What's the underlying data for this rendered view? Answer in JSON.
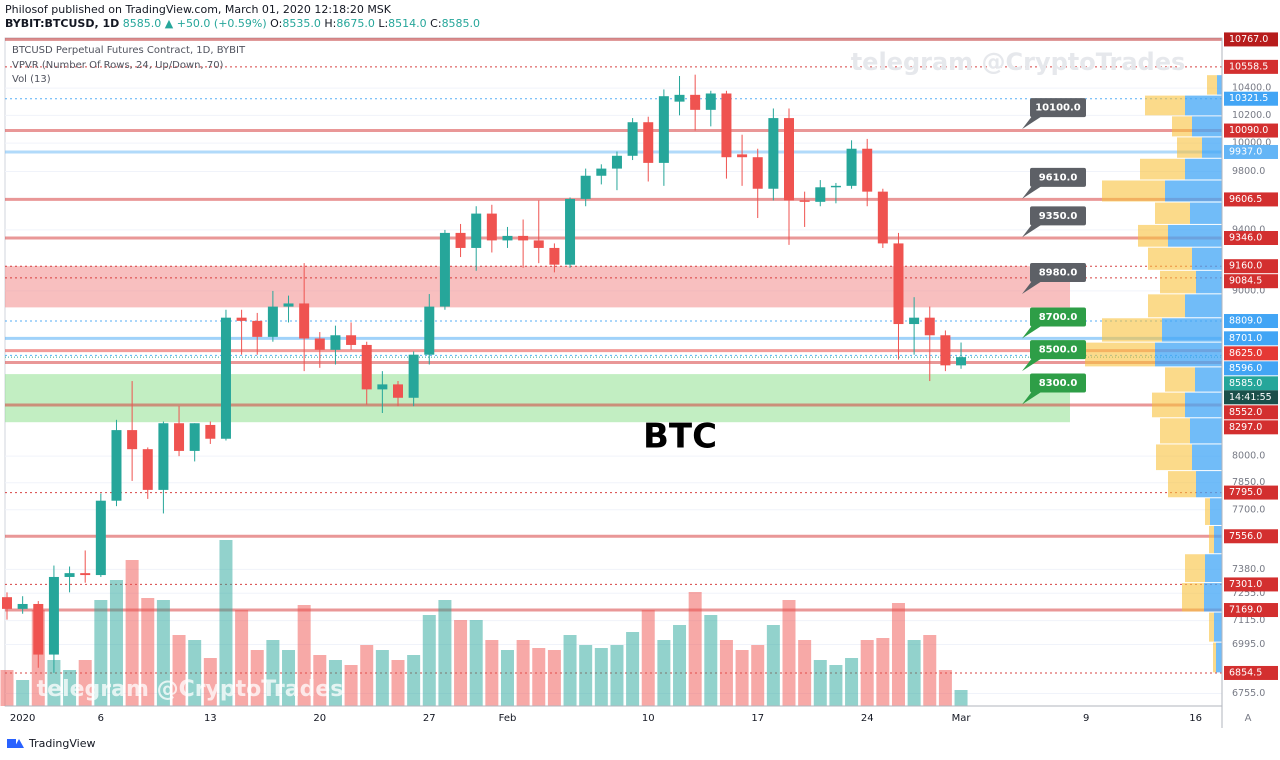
{
  "header": {
    "publisher": "Philosof published on TradingView.com, March 01, 2020 12:18:20 MSK",
    "symbol": "BYBIT:BTCUSD, 1D",
    "last": "8585.0",
    "change": "▲ +50.0 (+0.59%)",
    "o_label": "O:",
    "o": "8535.0",
    "h_label": "H:",
    "h": "8675.0",
    "l_label": "L:",
    "l": "8514.0",
    "c_label": "C:",
    "c": "8585.0"
  },
  "footer": {
    "brand": "TradingView",
    "axis_mode": "A"
  },
  "chart_data": {
    "type": "candlestick",
    "title": "BTCUSD Perpetual Futures Contract, 1D, BYBIT",
    "indicators": [
      "VPVR (Number Of Rows, 24, Up/Down, 70)",
      "Vol (13)"
    ],
    "annotation": "BTC",
    "watermark": "telegram @CryptoTrades",
    "categories": [
      null,
      "2020",
      null,
      null,
      null,
      null,
      "6",
      null,
      null,
      null,
      null,
      null,
      null,
      "13",
      null,
      null,
      null,
      null,
      null,
      null,
      "20",
      null,
      null,
      null,
      null,
      null,
      null,
      "27",
      null,
      null,
      null,
      null,
      "Feb",
      null,
      null,
      null,
      null,
      null,
      null,
      null,
      null,
      "10",
      null,
      null,
      null,
      null,
      null,
      null,
      "17",
      null,
      null,
      null,
      null,
      null,
      null,
      "24",
      null,
      null,
      null,
      null,
      null,
      "Mar",
      null,
      null,
      null,
      null,
      null,
      null,
      null,
      "9",
      null,
      null,
      null,
      null,
      null,
      null,
      "16"
    ],
    "open": [
      7235,
      7175,
      7200,
      6945,
      7340,
      7360,
      7350,
      7750,
      8150,
      8040,
      7810,
      8190,
      8030,
      8180,
      8100,
      8830,
      8810,
      8710,
      8900,
      8920,
      8700,
      8630,
      8720,
      8660,
      8390,
      8420,
      8340,
      8600,
      8900,
      9380,
      9280,
      9510,
      9330,
      9360,
      9330,
      9280,
      9170,
      9610,
      9770,
      9820,
      9910,
      10150,
      9860,
      10300,
      10350,
      10240,
      10360,
      9920,
      9900,
      9680,
      10180,
      9600,
      9590,
      9690,
      9700,
      9960,
      9660,
      9310,
      8790,
      8830,
      8720,
      8535,
      null,
      null,
      null,
      null,
      null,
      null,
      null,
      null,
      null,
      null,
      null,
      null,
      null,
      null,
      null
    ],
    "high": [
      7260,
      7240,
      7215,
      7400,
      7395,
      7480,
      7790,
      8210,
      8440,
      8050,
      8200,
      8290,
      8190,
      8200,
      8880,
      8880,
      8860,
      9000,
      8970,
      9180,
      8740,
      8780,
      8800,
      8680,
      8500,
      8440,
      8620,
      8980,
      9400,
      9440,
      9560,
      9570,
      9420,
      9470,
      9600,
      9310,
      9620,
      9820,
      9850,
      9940,
      10180,
      10190,
      10390,
      10490,
      10500,
      10380,
      10380,
      10060,
      9960,
      10250,
      10250,
      9660,
      9740,
      9720,
      10020,
      10030,
      9680,
      9380,
      8960,
      8900,
      8750,
      8675,
      null,
      null,
      null,
      null,
      null,
      null,
      null,
      null,
      null,
      null,
      null,
      null,
      null,
      null,
      null
    ],
    "low": [
      7120,
      7150,
      6880,
      6855,
      7260,
      7310,
      7340,
      7720,
      7860,
      7760,
      7680,
      8000,
      7970,
      8070,
      8090,
      8600,
      8600,
      8680,
      8800,
      8500,
      8520,
      8540,
      8630,
      8300,
      8250,
      8290,
      8290,
      8540,
      8880,
      9220,
      9130,
      9250,
      9280,
      9150,
      9180,
      9120,
      9150,
      9560,
      9710,
      9670,
      9880,
      9730,
      9700,
      10200,
      10090,
      10120,
      9750,
      9700,
      9480,
      9600,
      9300,
      9420,
      9560,
      9580,
      9680,
      9560,
      9280,
      8570,
      8600,
      8440,
      8500,
      8514,
      null,
      null,
      null,
      null,
      null,
      null,
      null,
      null,
      null,
      null,
      null,
      null,
      null,
      null,
      null
    ],
    "close": [
      7175,
      7200,
      6945,
      7340,
      7360,
      7350,
      7750,
      8150,
      8040,
      7810,
      8190,
      8030,
      8190,
      8100,
      8830,
      8810,
      8710,
      8900,
      8920,
      8700,
      8630,
      8720,
      8660,
      8390,
      8420,
      8340,
      8600,
      8900,
      9380,
      9280,
      9510,
      9330,
      9360,
      9330,
      9280,
      9170,
      9610,
      9770,
      9820,
      9910,
      10150,
      9860,
      10340,
      10350,
      10240,
      10360,
      9900,
      9900,
      9680,
      10180,
      9600,
      9590,
      9690,
      9700,
      9960,
      9660,
      9310,
      8790,
      8830,
      8720,
      8535,
      8585,
      null,
      null,
      null,
      null,
      null,
      null,
      null,
      null,
      null,
      null,
      null,
      null,
      null,
      null,
      null
    ],
    "volume": [
      36,
      26,
      96,
      46,
      36,
      46,
      106,
      126,
      146,
      108,
      106,
      71,
      66,
      48,
      166,
      96,
      56,
      66,
      56,
      101,
      51,
      46,
      41,
      61,
      56,
      46,
      51,
      91,
      106,
      86,
      86,
      66,
      56,
      66,
      58,
      56,
      71,
      61,
      58,
      61,
      74,
      96,
      66,
      81,
      114,
      91,
      66,
      56,
      61,
      81,
      106,
      66,
      46,
      41,
      48,
      66,
      68,
      103,
      66,
      71,
      36,
      16,
      null,
      null,
      null,
      null,
      null,
      null,
      null,
      null,
      null,
      null,
      null,
      null,
      null,
      null,
      null
    ],
    "up_color": "#26a69a",
    "down_color": "#ef5350",
    "log_scale": true,
    "ylim": [
      6695,
      10778
    ],
    "yticks": [
      {
        "value": 10400,
        "label": "10400.0"
      },
      {
        "value": 10200,
        "label": "10200.0"
      },
      {
        "value": 10000,
        "label": "10000.0"
      },
      {
        "value": 9800,
        "label": "9800.0"
      },
      {
        "value": 9400,
        "label": "9400.0"
      },
      {
        "value": 9000,
        "label": "9000.0"
      },
      {
        "value": 8000,
        "label": "8000.0"
      },
      {
        "value": 7850,
        "label": "7850.0"
      },
      {
        "value": 7700,
        "label": "7700.0"
      },
      {
        "value": 7380,
        "label": "7380.0"
      },
      {
        "value": 7255,
        "label": "7255.0"
      },
      {
        "value": 7115,
        "label": "7115.0"
      },
      {
        "value": 6995,
        "label": "6995.0"
      },
      {
        "value": 6755,
        "label": "6755.0"
      }
    ],
    "grid": true,
    "levels": [
      {
        "value": 10767,
        "label": "10767.0",
        "color": "#b71c1c",
        "style": "solid"
      },
      {
        "value": 10558.5,
        "label": "10558.5",
        "color": "#d32f2f",
        "style": "dotted"
      },
      {
        "value": 10321.5,
        "label": "10321.5",
        "color": "#42a5f5",
        "style": "dotted"
      },
      {
        "value": 10090,
        "label": "10090.0",
        "color": "#d32f2f",
        "style": "solid"
      },
      {
        "value": 9937,
        "label": "9937.0",
        "color": "#64b5f6",
        "style": "solid"
      },
      {
        "value": 9606.5,
        "label": "9606.5",
        "color": "#d32f2f",
        "style": "solid"
      },
      {
        "value": 9346,
        "label": "9346.0",
        "color": "#d32f2f",
        "style": "solid"
      },
      {
        "value": 9160,
        "label": "9160.0",
        "color": "#d32f2f",
        "style": "dotted"
      },
      {
        "value": 9084.5,
        "label": "9084.5",
        "color": "#d32f2f",
        "style": "dotted"
      },
      {
        "value": 8809,
        "label": "8809.0",
        "color": "#42a5f5",
        "style": "dotted"
      },
      {
        "value": 8701,
        "label": "8701.0",
        "color": "#42a5f5",
        "style": "solid"
      },
      {
        "value": 8625,
        "label": "8625.0",
        "color": "#e53935",
        "style": "solid"
      },
      {
        "value": 8596,
        "label": "8596.0",
        "color": "#42a5f5",
        "style": "dotted"
      },
      {
        "value": 8552,
        "label": "8552.0",
        "color": "#d32f2f",
        "style": "solid"
      },
      {
        "value": 8297,
        "label": "8297.0",
        "color": "#d32f2f",
        "style": "solid"
      },
      {
        "value": 7795,
        "label": "7795.0",
        "color": "#d32f2f",
        "style": "dotted"
      },
      {
        "value": 7556,
        "label": "7556.0",
        "color": "#d32f2f",
        "style": "solid"
      },
      {
        "value": 7301,
        "label": "7301.0",
        "color": "#d32f2f",
        "style": "dotted"
      },
      {
        "value": 7169,
        "label": "7169.0",
        "color": "#d32f2f",
        "style": "solid"
      },
      {
        "value": 6854.5,
        "label": "6854.5",
        "color": "#d32f2f",
        "style": "dotted"
      }
    ],
    "last_price": {
      "value": 8585,
      "label": "8585.0",
      "color": "#26a69a",
      "countdown": "14:41:55"
    },
    "zones": [
      {
        "from": 8895,
        "to": 9160,
        "color": "#f28b8b"
      },
      {
        "from": 8196,
        "to": 8482,
        "color": "#8fe08f"
      }
    ],
    "callouts": [
      {
        "value": 10100,
        "label": "10100.0",
        "color": "#5d6066"
      },
      {
        "value": 9610,
        "label": "9610.0",
        "color": "#5d6066"
      },
      {
        "value": 9350,
        "label": "9350.0",
        "color": "#5d6066"
      },
      {
        "value": 8980,
        "label": "8980.0",
        "color": "#5d6066"
      },
      {
        "value": 8700,
        "label": "8700.0",
        "color": "#2e9e47"
      },
      {
        "value": 8500,
        "label": "8500.0",
        "color": "#2e9e47"
      },
      {
        "value": 8300,
        "label": "8300.0",
        "color": "#2e9e47"
      }
    ],
    "vpvr": {
      "up_color": "#42a5f5",
      "down_color": "#f9c23c",
      "up": [
        6,
        8,
        18,
        17,
        8,
        12,
        26,
        30,
        32,
        37,
        27,
        67,
        60,
        37,
        26,
        30,
        54,
        32,
        57,
        37,
        20,
        30,
        37,
        5
      ],
      "down": [
        3,
        5,
        22,
        20,
        5,
        5,
        28,
        36,
        30,
        33,
        30,
        70,
        60,
        37,
        36,
        44,
        30,
        35,
        63,
        45,
        25,
        20,
        40,
        10
      ]
    }
  }
}
